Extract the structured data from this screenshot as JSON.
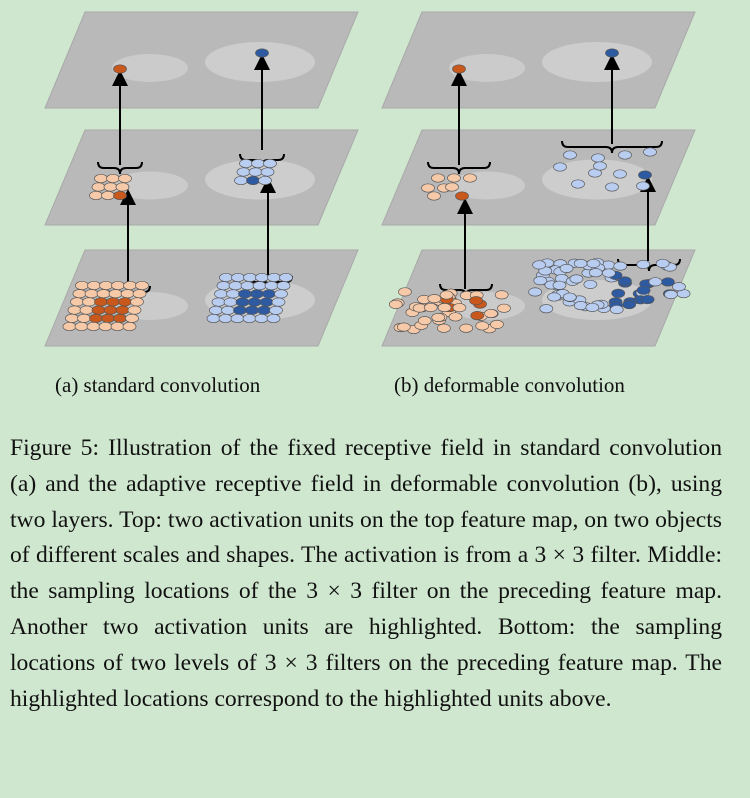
{
  "subcaptions": {
    "a": "(a) standard convolution",
    "b": "(b) deformable convolution"
  },
  "caption": {
    "text": "Figure 5: Illustration of the fixed receptive field in stan­dard convolution (a) and the adaptive receptive field in de­formable convolution (b), using two layers. Top: two acti­vation units on the top feature map, on two objects of dif­ferent scales and shapes. The activation is from a 3 × 3 filter. Middle: the sampling locations of the 3 × 3 filter on the preceding feature map. Another two activation units are highlighted. Bottom: the sampling locations of two levels of 3 × 3 filters on the preceding feature map. The high­lighted locations correspond to the highlighted units above."
  },
  "colors": {
    "background": "#cfe7cf",
    "plane": "#b9b9b9",
    "orange_strong": "#c8581c",
    "orange_light": "#f6c9a8",
    "blue_strong": "#2d5aa0",
    "blue_light": "#b9cdf0",
    "arrow": "#000000"
  }
}
